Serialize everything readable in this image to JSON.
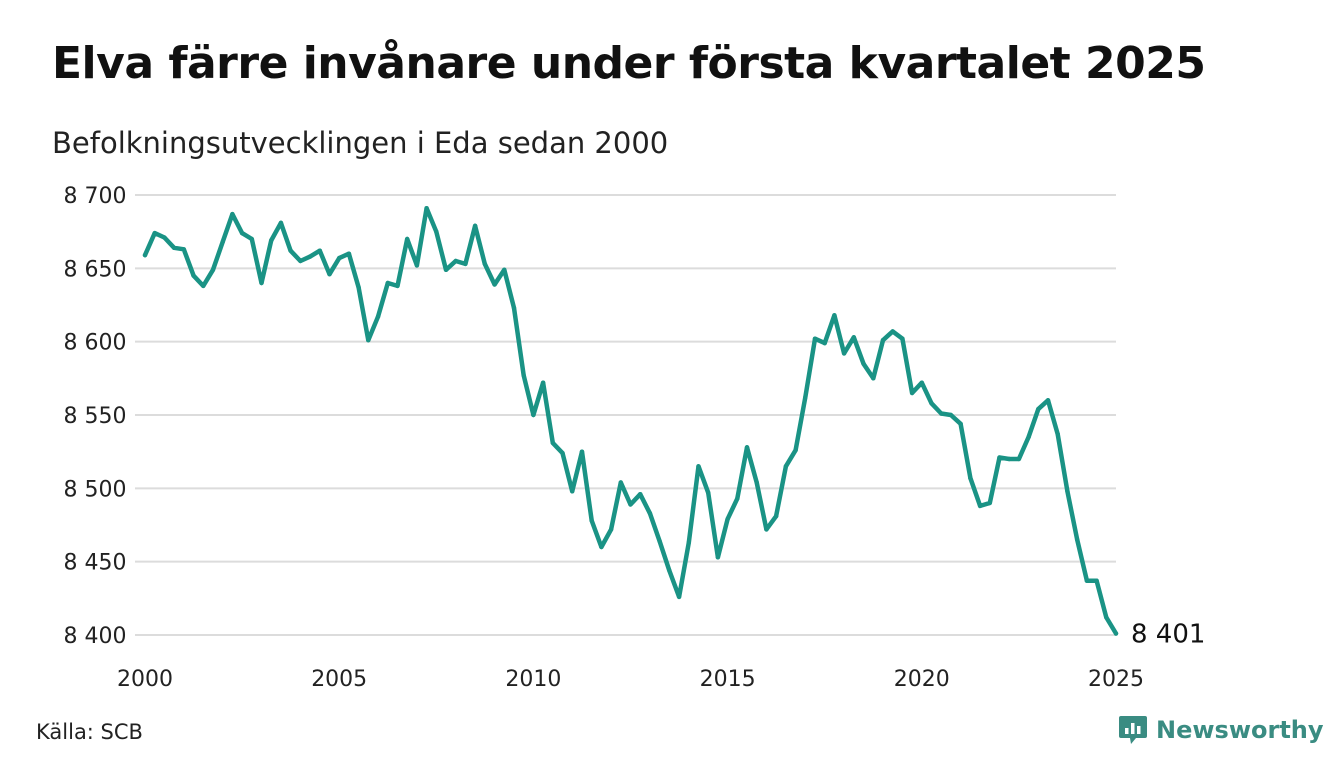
{
  "title": "Elva färre invånare under första kvartalet 2025",
  "subtitle": "Befolkningsutvecklingen i Eda sedan 2000",
  "source": "Källa: SCB",
  "brand": {
    "name": "Newsworthy",
    "icon": "newsworthy-logo-icon",
    "color": "#3a8c82"
  },
  "chart_data": {
    "type": "line",
    "title": "Elva färre invånare under första kvartalet 2025",
    "subtitle": "Befolkningsutvecklingen i Eda sedan 2000",
    "xlabel": "",
    "ylabel": "",
    "xlim": [
      2000,
      2025
    ],
    "ylim": [
      8400,
      8700
    ],
    "x_ticks": [
      2000,
      2005,
      2010,
      2015,
      2020,
      2025
    ],
    "y_ticks": [
      8400,
      8450,
      8500,
      8550,
      8600,
      8650,
      8700
    ],
    "y_tick_labels": [
      "8 400",
      "8 450",
      "8 500",
      "8 550",
      "8 600",
      "8 650",
      "8 700"
    ],
    "grid": "horizontal",
    "line_color": "#1a9385",
    "end_label": "8 401",
    "series": [
      {
        "name": "",
        "x": [
          2000.0,
          2000.25,
          2000.5,
          2000.75,
          2001.0,
          2001.25,
          2001.5,
          2001.75,
          2002.0,
          2002.25,
          2002.5,
          2002.75,
          2003.0,
          2003.25,
          2003.5,
          2003.75,
          2004.0,
          2004.25,
          2004.5,
          2004.75,
          2005.0,
          2005.25,
          2005.5,
          2005.75,
          2006.0,
          2006.25,
          2006.5,
          2006.75,
          2007.0,
          2007.25,
          2007.5,
          2007.75,
          2008.0,
          2008.25,
          2008.5,
          2008.75,
          2009.0,
          2009.25,
          2009.5,
          2009.75,
          2010.0,
          2010.25,
          2010.5,
          2010.75,
          2011.0,
          2011.25,
          2011.5,
          2011.75,
          2012.0,
          2012.25,
          2012.5,
          2012.75,
          2013.0,
          2013.25,
          2013.5,
          2013.75,
          2014.0,
          2014.25,
          2014.5,
          2014.75,
          2015.0,
          2015.25,
          2015.5,
          2015.75,
          2016.0,
          2016.25,
          2016.5,
          2016.75,
          2017.0,
          2017.25,
          2017.5,
          2017.75,
          2018.0,
          2018.25,
          2018.5,
          2018.75,
          2019.0,
          2019.25,
          2019.5,
          2019.75,
          2020.0,
          2020.25,
          2020.5,
          2020.75,
          2021.0,
          2021.25,
          2021.5,
          2021.75,
          2022.0,
          2022.25,
          2022.5,
          2022.75,
          2023.0,
          2023.25,
          2023.5,
          2023.75,
          2024.0,
          2024.25,
          2024.5,
          2024.75,
          2025.0
        ],
        "values": [
          8659,
          8674,
          8671,
          8664,
          8663,
          8645,
          8638,
          8649,
          8668,
          8687,
          8674,
          8670,
          8640,
          8669,
          8681,
          8662,
          8655,
          8658,
          8662,
          8646,
          8657,
          8660,
          8637,
          8601,
          8617,
          8640,
          8638,
          8670,
          8652,
          8691,
          8675,
          8649,
          8655,
          8653,
          8679,
          8653,
          8639,
          8649,
          8623,
          8577,
          8550,
          8572,
          8531,
          8524,
          8498,
          8525,
          8478,
          8460,
          8472,
          8504,
          8489,
          8496,
          8483,
          8464,
          8444,
          8426,
          8463,
          8515,
          8497,
          8453,
          8479,
          8493,
          8528,
          8504,
          8472,
          8481,
          8515,
          8526,
          8562,
          8602,
          8599,
          8618,
          8592,
          8603,
          8585,
          8575,
          8601,
          8607,
          8602,
          8565,
          8572,
          8558,
          8551,
          8550,
          8544,
          8507,
          8488,
          8490,
          8521,
          8520,
          8520,
          8535,
          8554,
          8560,
          8537,
          8498,
          8465,
          8437,
          8437,
          8412,
          8401
        ]
      }
    ]
  }
}
